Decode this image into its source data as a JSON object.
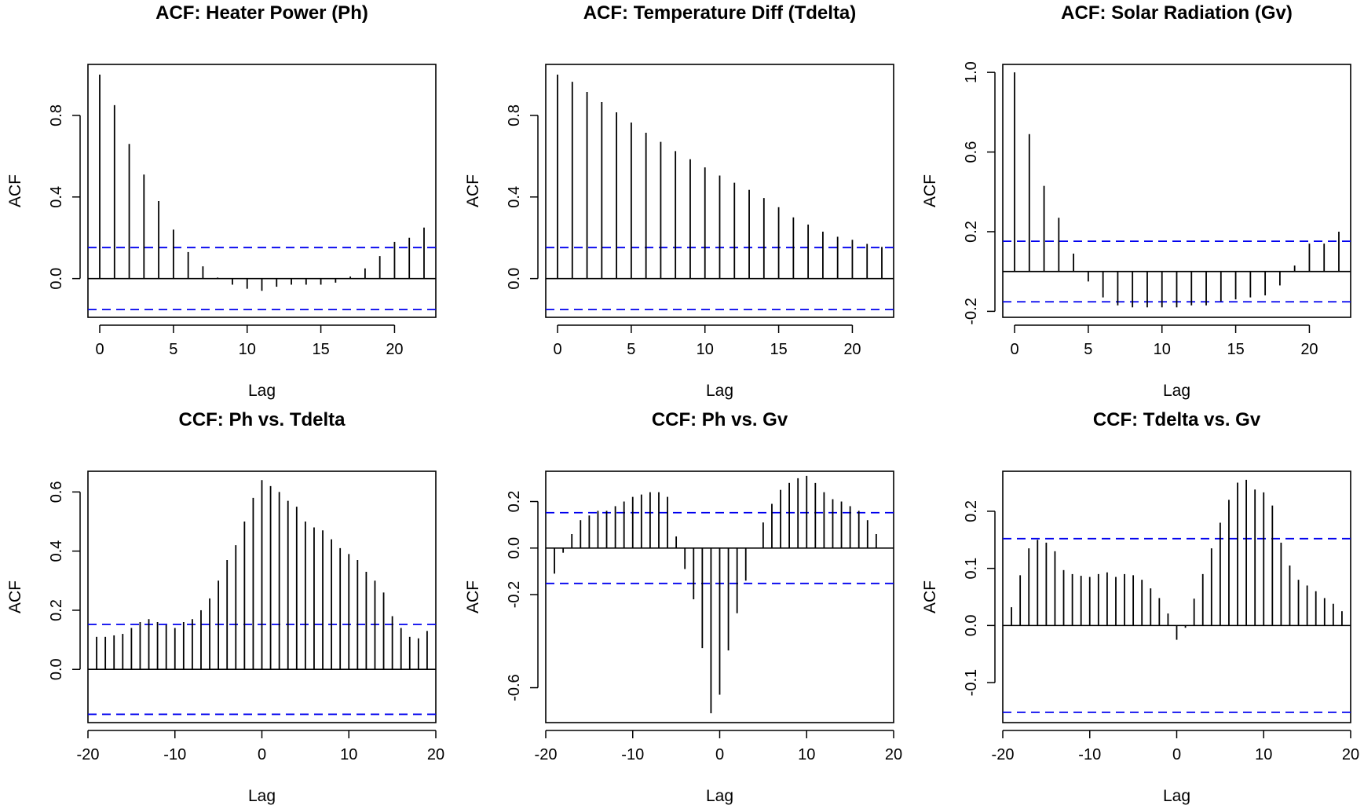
{
  "chart_data": [
    {
      "type": "bar",
      "subtype": "acf",
      "title": "ACF: Heater Power (Ph)",
      "xlabel": "Lag",
      "ylabel": "ACF",
      "xlim": [
        -0.8,
        22.8
      ],
      "ylim": [
        -0.19,
        1.05
      ],
      "xticks": [
        0,
        5,
        10,
        15,
        20
      ],
      "yticks": [
        0.0,
        0.4,
        0.8
      ],
      "confidence": 0.152,
      "lags": [
        0,
        1,
        2,
        3,
        4,
        5,
        6,
        7,
        8,
        9,
        10,
        11,
        12,
        13,
        14,
        15,
        16,
        17,
        18,
        19,
        20,
        21,
        22
      ],
      "values": [
        1.0,
        0.85,
        0.66,
        0.51,
        0.38,
        0.24,
        0.13,
        0.06,
        0.005,
        -0.03,
        -0.05,
        -0.06,
        -0.04,
        -0.03,
        -0.03,
        -0.03,
        -0.02,
        0.01,
        0.05,
        0.11,
        0.18,
        0.2,
        0.25
      ]
    },
    {
      "type": "bar",
      "subtype": "acf",
      "title": "ACF: Temperature Diff (Tdelta)",
      "xlabel": "Lag",
      "ylabel": "ACF",
      "xlim": [
        -0.8,
        22.8
      ],
      "ylim": [
        -0.19,
        1.05
      ],
      "xticks": [
        0,
        5,
        10,
        15,
        20
      ],
      "yticks": [
        0.0,
        0.4,
        0.8
      ],
      "confidence": 0.152,
      "lags": [
        0,
        1,
        2,
        3,
        4,
        5,
        6,
        7,
        8,
        9,
        10,
        11,
        12,
        13,
        14,
        15,
        16,
        17,
        18,
        19,
        20,
        21,
        22
      ],
      "values": [
        1.0,
        0.965,
        0.915,
        0.865,
        0.815,
        0.765,
        0.715,
        0.67,
        0.625,
        0.585,
        0.545,
        0.505,
        0.47,
        0.435,
        0.395,
        0.35,
        0.3,
        0.265,
        0.23,
        0.205,
        0.19,
        0.17,
        0.155
      ]
    },
    {
      "type": "bar",
      "subtype": "acf",
      "title": "ACF: Solar Radiation (Gv)",
      "xlabel": "Lag",
      "ylabel": "ACF",
      "xlim": [
        -0.8,
        22.8
      ],
      "ylim": [
        -0.23,
        1.04
      ],
      "xticks": [
        0,
        5,
        10,
        15,
        20
      ],
      "yticks": [
        -0.2,
        0.2,
        0.6,
        1.0
      ],
      "confidence": 0.152,
      "lags": [
        0,
        1,
        2,
        3,
        4,
        5,
        6,
        7,
        8,
        9,
        10,
        11,
        12,
        13,
        14,
        15,
        16,
        17,
        18,
        19,
        20,
        21,
        22
      ],
      "values": [
        1.0,
        0.69,
        0.43,
        0.27,
        0.09,
        -0.05,
        -0.13,
        -0.17,
        -0.18,
        -0.18,
        -0.18,
        -0.18,
        -0.17,
        -0.17,
        -0.15,
        -0.14,
        -0.13,
        -0.12,
        -0.07,
        0.03,
        0.14,
        0.14,
        0.2
      ]
    },
    {
      "type": "bar",
      "subtype": "ccf",
      "title": "CCF: Ph vs. Tdelta",
      "xlabel": "Lag",
      "ylabel": "ACF",
      "xlim": [
        -20,
        20
      ],
      "ylim": [
        -0.18,
        0.67
      ],
      "xticks": [
        -20,
        -10,
        0,
        10,
        20
      ],
      "yticks": [
        0.0,
        0.2,
        0.4,
        0.6
      ],
      "confidence": 0.152,
      "lags": [
        -19,
        -18,
        -17,
        -16,
        -15,
        -14,
        -13,
        -12,
        -11,
        -10,
        -9,
        -8,
        -7,
        -6,
        -5,
        -4,
        -3,
        -2,
        -1,
        0,
        1,
        2,
        3,
        4,
        5,
        6,
        7,
        8,
        9,
        10,
        11,
        12,
        13,
        14,
        15,
        16,
        17,
        18,
        19
      ],
      "values": [
        0.11,
        0.11,
        0.115,
        0.12,
        0.14,
        0.16,
        0.17,
        0.16,
        0.15,
        0.14,
        0.16,
        0.17,
        0.2,
        0.24,
        0.3,
        0.37,
        0.42,
        0.5,
        0.58,
        0.64,
        0.62,
        0.6,
        0.57,
        0.55,
        0.5,
        0.48,
        0.47,
        0.44,
        0.41,
        0.39,
        0.37,
        0.33,
        0.3,
        0.26,
        0.18,
        0.14,
        0.11,
        0.105,
        0.13
      ]
    },
    {
      "type": "bar",
      "subtype": "ccf",
      "title": "CCF: Ph vs. Gv",
      "xlabel": "Lag",
      "ylabel": "ACF",
      "xlim": [
        -20,
        20
      ],
      "ylim": [
        -0.75,
        0.33
      ],
      "xticks": [
        -20,
        -10,
        0,
        10,
        20
      ],
      "yticks": [
        -0.6,
        -0.2,
        0.0,
        0.2
      ],
      "confidence": 0.152,
      "lags": [
        -19,
        -18,
        -17,
        -16,
        -15,
        -14,
        -13,
        -12,
        -11,
        -10,
        -9,
        -8,
        -7,
        -6,
        -5,
        -4,
        -3,
        -2,
        -1,
        0,
        1,
        2,
        3,
        4,
        5,
        6,
        7,
        8,
        9,
        10,
        11,
        12,
        13,
        14,
        15,
        16,
        17,
        18,
        19
      ],
      "values": [
        -0.11,
        -0.02,
        0.06,
        0.12,
        0.14,
        0.16,
        0.16,
        0.18,
        0.2,
        0.22,
        0.23,
        0.24,
        0.24,
        0.22,
        0.05,
        -0.09,
        -0.22,
        -0.43,
        -0.71,
        -0.63,
        -0.44,
        -0.28,
        -0.14,
        0.0,
        0.11,
        0.19,
        0.25,
        0.28,
        0.3,
        0.31,
        0.28,
        0.24,
        0.21,
        0.2,
        0.18,
        0.16,
        0.12,
        0.06,
        0.0
      ]
    },
    {
      "type": "bar",
      "subtype": "ccf",
      "title": "CCF: Tdelta vs. Gv",
      "xlabel": "Lag",
      "ylabel": "ACF",
      "xlim": [
        -20,
        20
      ],
      "ylim": [
        -0.17,
        0.27
      ],
      "xticks": [
        -20,
        -10,
        0,
        10,
        20
      ],
      "yticks": [
        -0.1,
        0.0,
        0.1,
        0.2
      ],
      "confidence": 0.152,
      "lags": [
        -19,
        -18,
        -17,
        -16,
        -15,
        -14,
        -13,
        -12,
        -11,
        -10,
        -9,
        -8,
        -7,
        -6,
        -5,
        -4,
        -3,
        -2,
        -1,
        0,
        1,
        2,
        3,
        4,
        5,
        6,
        7,
        8,
        9,
        10,
        11,
        12,
        13,
        14,
        15,
        16,
        17,
        18,
        19
      ],
      "values": [
        0.032,
        0.088,
        0.135,
        0.15,
        0.145,
        0.13,
        0.097,
        0.09,
        0.087,
        0.085,
        0.09,
        0.093,
        0.085,
        0.09,
        0.088,
        0.08,
        0.065,
        0.048,
        0.021,
        -0.025,
        -0.004,
        0.047,
        0.09,
        0.135,
        0.18,
        0.22,
        0.25,
        0.255,
        0.238,
        0.233,
        0.21,
        0.145,
        0.105,
        0.08,
        0.07,
        0.06,
        0.048,
        0.038,
        0.025
      ]
    }
  ]
}
